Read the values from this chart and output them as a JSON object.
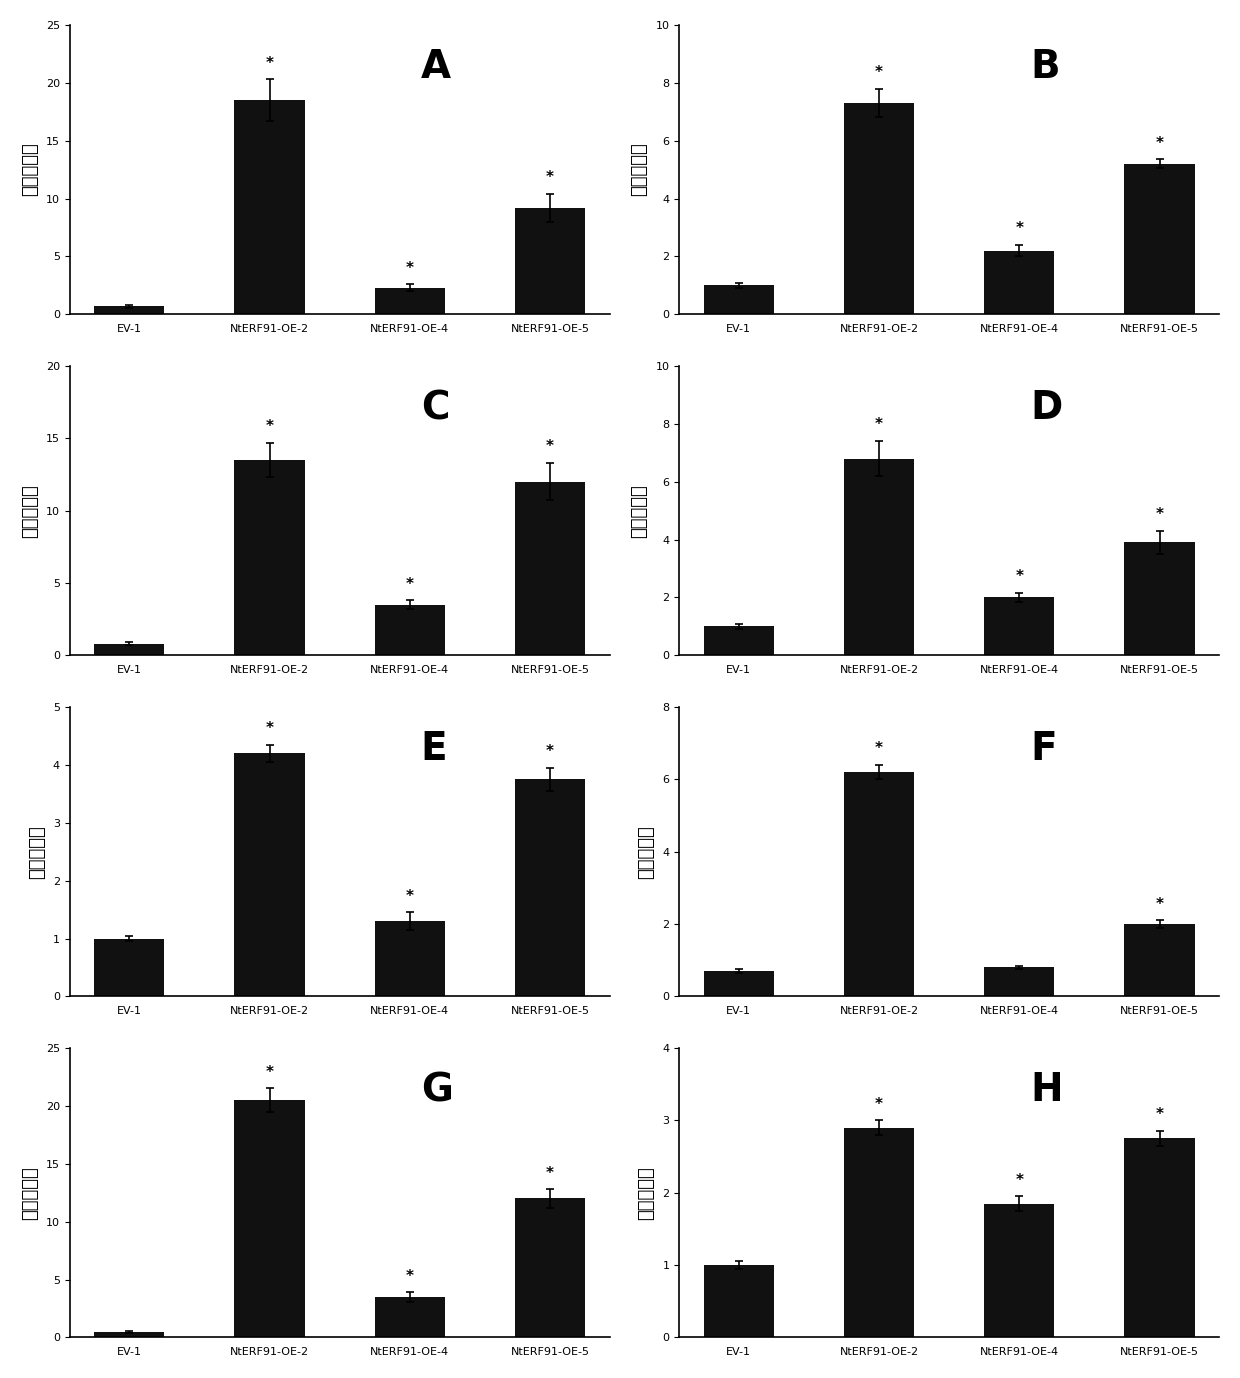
{
  "panels": [
    {
      "label": "A",
      "categories": [
        "EV-1",
        "NtERF91-OE-2",
        "NtERF91-OE-4",
        "NtERF91-OE-5"
      ],
      "values": [
        0.7,
        18.5,
        2.3,
        9.2
      ],
      "errors": [
        0.15,
        1.8,
        0.3,
        1.2
      ],
      "ylim": [
        0,
        25
      ],
      "yticks": [
        0,
        5,
        10,
        15,
        20,
        25
      ],
      "starred": [
        false,
        true,
        true,
        true
      ]
    },
    {
      "label": "B",
      "categories": [
        "EV-1",
        "NtERF91-OE-2",
        "NtERF91-OE-4",
        "NtERF91-OE-5"
      ],
      "values": [
        1.0,
        7.3,
        2.2,
        5.2
      ],
      "errors": [
        0.1,
        0.5,
        0.2,
        0.15
      ],
      "ylim": [
        0,
        10
      ],
      "yticks": [
        0,
        2,
        4,
        6,
        8,
        10
      ],
      "starred": [
        false,
        true,
        true,
        true
      ]
    },
    {
      "label": "C",
      "categories": [
        "EV-1",
        "NtERF91-OE-2",
        "NtERF91-OE-4",
        "NtERF91-OE-5"
      ],
      "values": [
        0.8,
        13.5,
        3.5,
        12.0
      ],
      "errors": [
        0.1,
        1.2,
        0.3,
        1.3
      ],
      "ylim": [
        0,
        20
      ],
      "yticks": [
        0,
        5,
        10,
        15,
        20
      ],
      "starred": [
        false,
        true,
        true,
        true
      ]
    },
    {
      "label": "D",
      "categories": [
        "EV-1",
        "NtERF91-OE-2",
        "NtERF91-OE-4",
        "NtERF91-OE-5"
      ],
      "values": [
        1.0,
        6.8,
        2.0,
        3.9
      ],
      "errors": [
        0.08,
        0.6,
        0.15,
        0.4
      ],
      "ylim": [
        0,
        10
      ],
      "yticks": [
        0,
        2,
        4,
        6,
        8,
        10
      ],
      "starred": [
        false,
        true,
        true,
        true
      ]
    },
    {
      "label": "E",
      "categories": [
        "EV-1",
        "NtERF91-OE-2",
        "NtERF91-OE-4",
        "NtERF91-OE-5"
      ],
      "values": [
        1.0,
        4.2,
        1.3,
        3.75
      ],
      "errors": [
        0.05,
        0.15,
        0.15,
        0.2
      ],
      "ylim": [
        0,
        5
      ],
      "yticks": [
        0,
        1,
        2,
        3,
        4,
        5
      ],
      "starred": [
        false,
        true,
        true,
        true
      ]
    },
    {
      "label": "F",
      "categories": [
        "EV-1",
        "NtERF91-OE-2",
        "NtERF91-OE-4",
        "NtERF91-OE-5"
      ],
      "values": [
        0.7,
        6.2,
        0.8,
        2.0
      ],
      "errors": [
        0.05,
        0.2,
        0.05,
        0.1
      ],
      "ylim": [
        0,
        8
      ],
      "yticks": [
        0,
        2,
        4,
        6,
        8
      ],
      "starred": [
        false,
        true,
        false,
        true
      ]
    },
    {
      "label": "G",
      "categories": [
        "EV-1",
        "NtERF91-OE-2",
        "NtERF91-OE-4",
        "NtERF91-OE-5"
      ],
      "values": [
        0.5,
        20.5,
        3.5,
        12.0
      ],
      "errors": [
        0.08,
        1.0,
        0.4,
        0.8
      ],
      "ylim": [
        0,
        25
      ],
      "yticks": [
        0,
        5,
        10,
        15,
        20,
        25
      ],
      "starred": [
        false,
        true,
        true,
        true
      ]
    },
    {
      "label": "H",
      "categories": [
        "EV-1",
        "NtERF91-OE-2",
        "NtERF91-OE-4",
        "NtERF91-OE-5"
      ],
      "values": [
        1.0,
        2.9,
        1.85,
        2.75
      ],
      "errors": [
        0.05,
        0.1,
        0.1,
        0.1
      ],
      "ylim": [
        0,
        4
      ],
      "yticks": [
        0,
        1,
        2,
        3,
        4
      ],
      "starred": [
        false,
        true,
        true,
        true
      ]
    }
  ],
  "bar_color": "#111111",
  "ylabel": "相对表达量",
  "background_color": "#ffffff",
  "label_fontsize": 28,
  "ylabel_fontsize": 13,
  "tick_fontsize": 8,
  "xlabel_fontsize": 8
}
